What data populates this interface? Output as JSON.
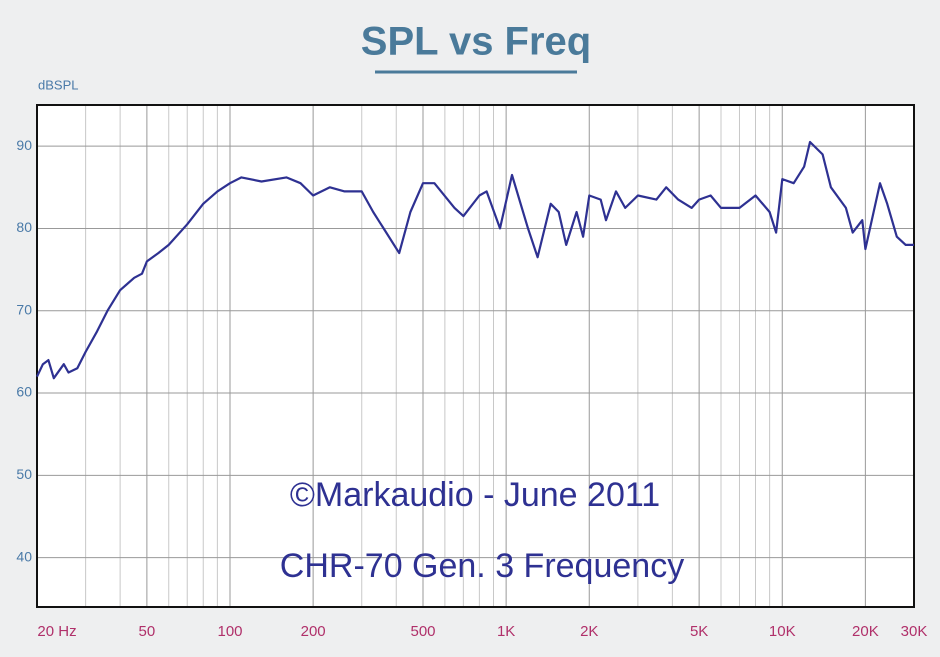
{
  "chart_data": {
    "type": "line",
    "title": "SPL vs Freq",
    "y_label": "dBSPL",
    "annotations": [
      "©Markaudio - June 2011",
      "CHR-70 Gen. 3 Frequency"
    ],
    "x": [
      20,
      21,
      22,
      23,
      25,
      26,
      28,
      30,
      33,
      36,
      40,
      45,
      48,
      50,
      55,
      60,
      70,
      80,
      90,
      100,
      110,
      130,
      160,
      180,
      200,
      230,
      260,
      300,
      330,
      360,
      410,
      450,
      500,
      550,
      650,
      700,
      800,
      850,
      950,
      1050,
      1200,
      1300,
      1450,
      1550,
      1650,
      1800,
      1900,
      2000,
      2200,
      2300,
      2500,
      2700,
      3000,
      3500,
      3800,
      4200,
      4700,
      5000,
      5500,
      6000,
      7000,
      8000,
      9000,
      9500,
      10000,
      11000,
      12000,
      12600,
      14000,
      15000,
      17000,
      18000,
      19500,
      20000,
      22600,
      24000,
      26000,
      28000,
      30000
    ],
    "values": [
      62,
      63.5,
      64,
      61.8,
      63.5,
      62.5,
      63,
      65,
      67.5,
      70,
      72.5,
      74,
      74.5,
      76,
      77,
      78,
      80.5,
      83,
      84.5,
      85.5,
      86.2,
      85.7,
      86.2,
      85.5,
      84,
      85,
      84.5,
      84.5,
      82,
      80,
      77,
      82,
      85.5,
      85.5,
      82.5,
      81.5,
      84,
      84.5,
      80,
      86.5,
      80,
      76.5,
      83,
      82,
      78,
      82,
      79,
      84,
      83.5,
      81,
      84.5,
      82.5,
      84,
      83.5,
      85,
      83.5,
      82.5,
      83.5,
      84,
      82.5,
      82.5,
      84,
      82,
      79.5,
      86,
      85.5,
      87.5,
      90.5,
      89,
      85,
      82.5,
      79.5,
      81,
      77.5,
      85.5,
      83,
      79,
      78,
      78
    ],
    "color": "#2e3192",
    "log_x": true,
    "grid": true,
    "xlim": [
      20,
      30000
    ],
    "ylim": [
      34,
      95
    ],
    "xticks": [
      {
        "value": 20,
        "label": "20 Hz"
      },
      50,
      100,
      200,
      500,
      {
        "value": 1000,
        "label": "1K"
      },
      {
        "value": 2000,
        "label": "2K"
      },
      {
        "value": 5000,
        "label": "5K"
      },
      {
        "value": 10000,
        "label": "10K"
      },
      {
        "value": 20000,
        "label": "20K"
      },
      {
        "value": 30000,
        "label": "30K"
      }
    ],
    "x_minor_ticks": [
      30,
      40,
      60,
      70,
      80,
      90,
      300,
      400,
      600,
      700,
      800,
      900,
      3000,
      4000,
      6000,
      7000,
      8000,
      9000
    ],
    "yticks": [
      40,
      50,
      60,
      70,
      80,
      90
    ]
  }
}
